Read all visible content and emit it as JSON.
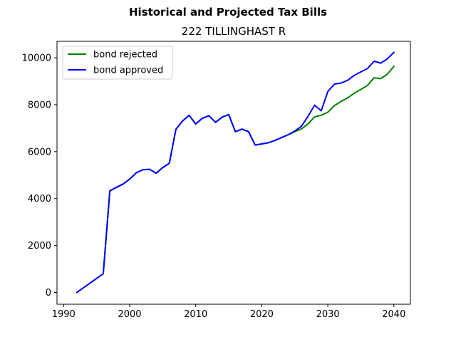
{
  "chart_data": {
    "type": "line",
    "suptitle": "Historical and Projected Tax Bills",
    "title": "222 TILLINGHAST R",
    "xlabel": "",
    "ylabel": "",
    "xlim": [
      1989,
      2042.5
    ],
    "ylim": [
      -500,
      10700
    ],
    "xticks": [
      1990,
      2000,
      2010,
      2020,
      2030,
      2040
    ],
    "yticks": [
      0,
      2000,
      4000,
      6000,
      8000,
      10000
    ],
    "grid": false,
    "legend_position": "upper-left",
    "series": [
      {
        "name": "bond rejected",
        "color": "#008000",
        "x": [
          1992,
          1996,
          1997,
          1998,
          1999,
          2000,
          2001,
          2002,
          2003,
          2004,
          2005,
          2006,
          2007,
          2008,
          2009,
          2010,
          2011,
          2012,
          2013,
          2014,
          2015,
          2016,
          2017,
          2018,
          2019,
          2020,
          2021,
          2022,
          2023,
          2024,
          2025,
          2026,
          2027,
          2028,
          2029,
          2030,
          2031,
          2032,
          2033,
          2034,
          2035,
          2036,
          2037,
          2038,
          2039,
          2040
        ],
        "values": [
          0,
          800,
          4330,
          4480,
          4620,
          4830,
          5100,
          5230,
          5250,
          5080,
          5320,
          5500,
          6950,
          7300,
          7550,
          7180,
          7420,
          7530,
          7250,
          7470,
          7580,
          6850,
          6960,
          6850,
          6280,
          6330,
          6380,
          6480,
          6600,
          6720,
          6850,
          6970,
          7180,
          7480,
          7550,
          7680,
          7960,
          8140,
          8290,
          8490,
          8650,
          8820,
          9150,
          9110,
          9300,
          9630
        ]
      },
      {
        "name": "bond approved",
        "color": "#0000ff",
        "x": [
          1992,
          1996,
          1997,
          1998,
          1999,
          2000,
          2001,
          2002,
          2003,
          2004,
          2005,
          2006,
          2007,
          2008,
          2009,
          2010,
          2011,
          2012,
          2013,
          2014,
          2015,
          2016,
          2017,
          2018,
          2019,
          2020,
          2021,
          2022,
          2023,
          2024,
          2025,
          2026,
          2027,
          2028,
          2029,
          2030,
          2031,
          2032,
          2033,
          2034,
          2035,
          2036,
          2037,
          2038,
          2039,
          2040
        ],
        "values": [
          0,
          800,
          4330,
          4480,
          4620,
          4830,
          5100,
          5230,
          5250,
          5080,
          5320,
          5500,
          6950,
          7300,
          7550,
          7180,
          7420,
          7530,
          7250,
          7470,
          7580,
          6850,
          6960,
          6850,
          6280,
          6330,
          6380,
          6480,
          6600,
          6720,
          6880,
          7080,
          7500,
          7980,
          7740,
          8560,
          8880,
          8920,
          9040,
          9250,
          9400,
          9540,
          9850,
          9770,
          9950,
          10230
        ]
      }
    ]
  }
}
